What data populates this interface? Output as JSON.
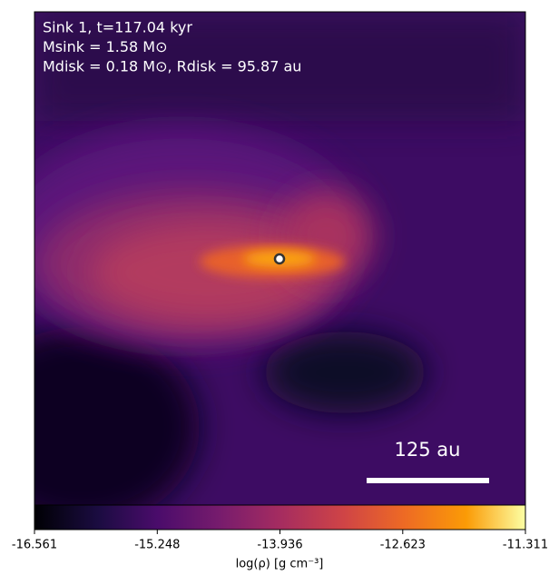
{
  "chart_data": {
    "type": "image",
    "annotations": [
      "Sink 1, t=117.04 kyr",
      "Msink = 1.58 M⊙",
      "Mdisk = 0.18 M⊙, Rdisk = 95.87 au"
    ],
    "scale_bar_label": "125 au",
    "colorbar": {
      "label": "log(ρ) [g cm⁻³]",
      "lim": [
        -16.561,
        -11.311
      ],
      "ticks": [
        -16.561,
        -15.248,
        -13.936,
        -12.623,
        -11.311
      ],
      "colormap": "inferno"
    }
  }
}
